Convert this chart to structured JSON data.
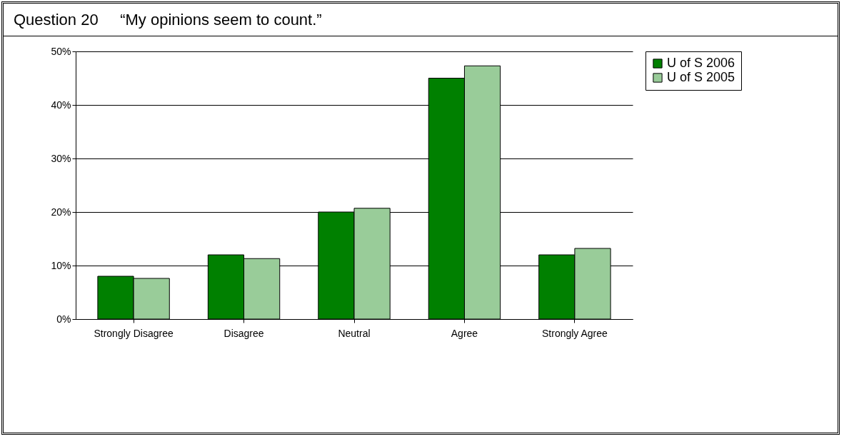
{
  "chart_data": {
    "type": "bar",
    "title": "Question 20     “My opinions seem to count.”",
    "categories": [
      "Strongly Disagree",
      "Disagree",
      "Neutral",
      "Agree",
      "Strongly Agree"
    ],
    "series": [
      {
        "name": "U of S 2006",
        "color": "#008000",
        "values": [
          8,
          12,
          20,
          45,
          12
        ]
      },
      {
        "name": "U of S 2005",
        "color": "#99cc99",
        "values": [
          7.6,
          11.3,
          20.7,
          47.3,
          13.2
        ]
      }
    ],
    "ylim": [
      0,
      50
    ],
    "yticks": [
      {
        "value": 0,
        "label": "0%"
      },
      {
        "value": 10,
        "label": "10%"
      },
      {
        "value": 20,
        "label": "20%"
      },
      {
        "value": 30,
        "label": "30%"
      },
      {
        "value": 40,
        "label": "40%"
      },
      {
        "value": 50,
        "label": "50%"
      }
    ],
    "grid": "y",
    "legend": "right"
  }
}
